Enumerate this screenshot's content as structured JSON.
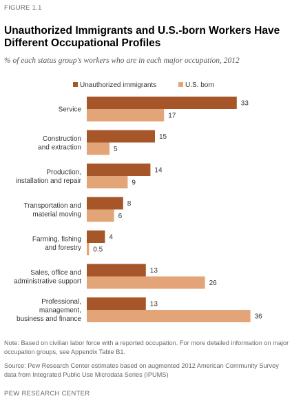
{
  "figure_label": "FIGURE 1.1",
  "chart_data": {
    "type": "bar",
    "orientation": "horizontal",
    "title": "Unauthorized Immigrants and U.S.-born Workers Have Different Occupational Profiles",
    "subtitle": "% of each status group's workers who are in each major occupation, 2012",
    "categories": [
      [
        "Service"
      ],
      [
        "Construction",
        "and extraction"
      ],
      [
        "Production,",
        "installation and repair"
      ],
      [
        "Transportation and",
        "material moving"
      ],
      [
        "Farming, fishing",
        "and forestry"
      ],
      [
        "Sales, office and",
        "administrative support"
      ],
      [
        "Professional,",
        "management,",
        "business and finance"
      ]
    ],
    "series": [
      {
        "name": "Unauthorized immigrants",
        "color": "#A65628",
        "values": [
          33,
          15,
          14,
          8,
          4,
          13,
          13
        ],
        "labels": [
          "33",
          "15",
          "14",
          "8",
          "4",
          "13",
          "13"
        ]
      },
      {
        "name": "U.S. born",
        "color": "#E3A577",
        "values": [
          17,
          5,
          9,
          6,
          0.5,
          26,
          36
        ],
        "labels": [
          "17",
          "5",
          "9",
          "6",
          "0.5",
          "26",
          "36"
        ]
      }
    ],
    "xlim": [
      0,
      36
    ],
    "grid": false,
    "legend_position": "top"
  },
  "note": "Note: Based on civilian labor force with a reported occupation. For more detailed information on major occupation groups, see Appendix Table B1.",
  "source": "Source: Pew Research Center estimates based on augmented 2012 American Community Survey data from Integrated Public Use Microdata Series (IPUMS)",
  "credit": "PEW RESEARCH CENTER"
}
